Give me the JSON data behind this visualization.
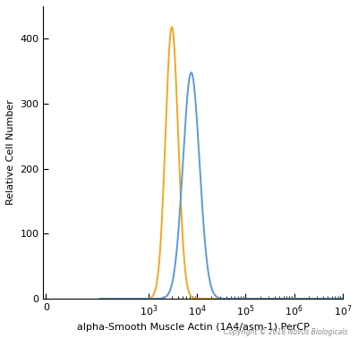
{
  "xlabel": "alpha-Smooth Muscle Actin (1A4/asm-1) PerCP",
  "ylabel": "Relative Cell Number",
  "copyright": "Copyright © 2018 Novus Biologicals",
  "ylim": [
    0,
    450
  ],
  "yticks": [
    0,
    100,
    200,
    300,
    400
  ],
  "orange_color": "#F5A623",
  "blue_color": "#5B9BD5",
  "orange_peak_log": 3.48,
  "orange_peak_val": 418,
  "orange_sigma_log": 0.13,
  "blue_peak_log": 3.88,
  "blue_peak_val": 348,
  "blue_sigma_log": 0.17,
  "background_color": "#ffffff",
  "linewidth": 1.4
}
